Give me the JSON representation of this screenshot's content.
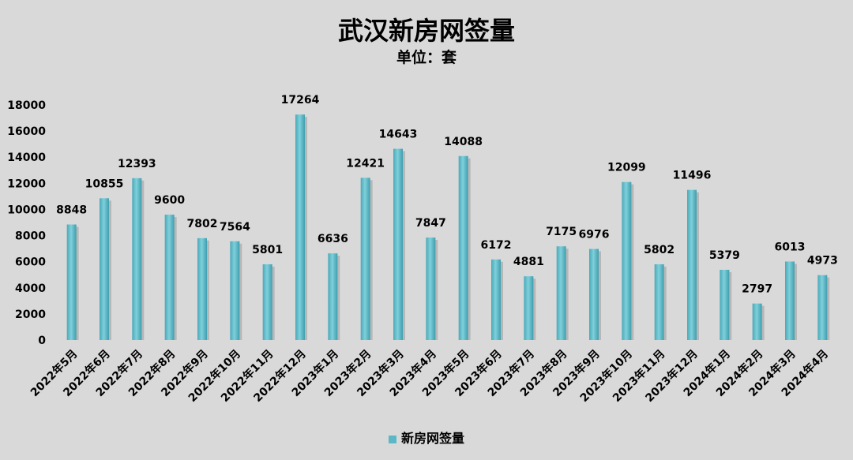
{
  "chart_data": {
    "type": "bar",
    "title": "武汉新房网签量",
    "subtitle": "单位：套",
    "categories": [
      "2022年5月",
      "2022年6月",
      "2022年7月",
      "2022年8月",
      "2022年9月",
      "2022年10月",
      "2022年11月",
      "2022年12月",
      "2023年1月",
      "2023年2月",
      "2023年3月",
      "2023年4月",
      "2023年5月",
      "2023年6月",
      "2023年7月",
      "2023年8月",
      "2023年9月",
      "2023年10月",
      "2023年11月",
      "2023年12月",
      "2024年1月",
      "2024年2月",
      "2024年3月",
      "2024年4月"
    ],
    "series": [
      {
        "name": "新房网签量",
        "values": [
          8848,
          10855,
          12393,
          9600,
          7802,
          7564,
          5801,
          17264,
          6636,
          12421,
          14643,
          7847,
          14088,
          6172,
          4881,
          7175,
          6976,
          12099,
          5802,
          11496,
          5379,
          2797,
          6013,
          4973
        ]
      }
    ],
    "yticks": [
      "0",
      "2000",
      "4000",
      "6000",
      "8000",
      "10000",
      "12000",
      "14000",
      "16000",
      "18000"
    ],
    "ylim": [
      0,
      18000
    ],
    "bar_color": "#5cb8c6",
    "legend_position": "bottom",
    "grid": false
  }
}
